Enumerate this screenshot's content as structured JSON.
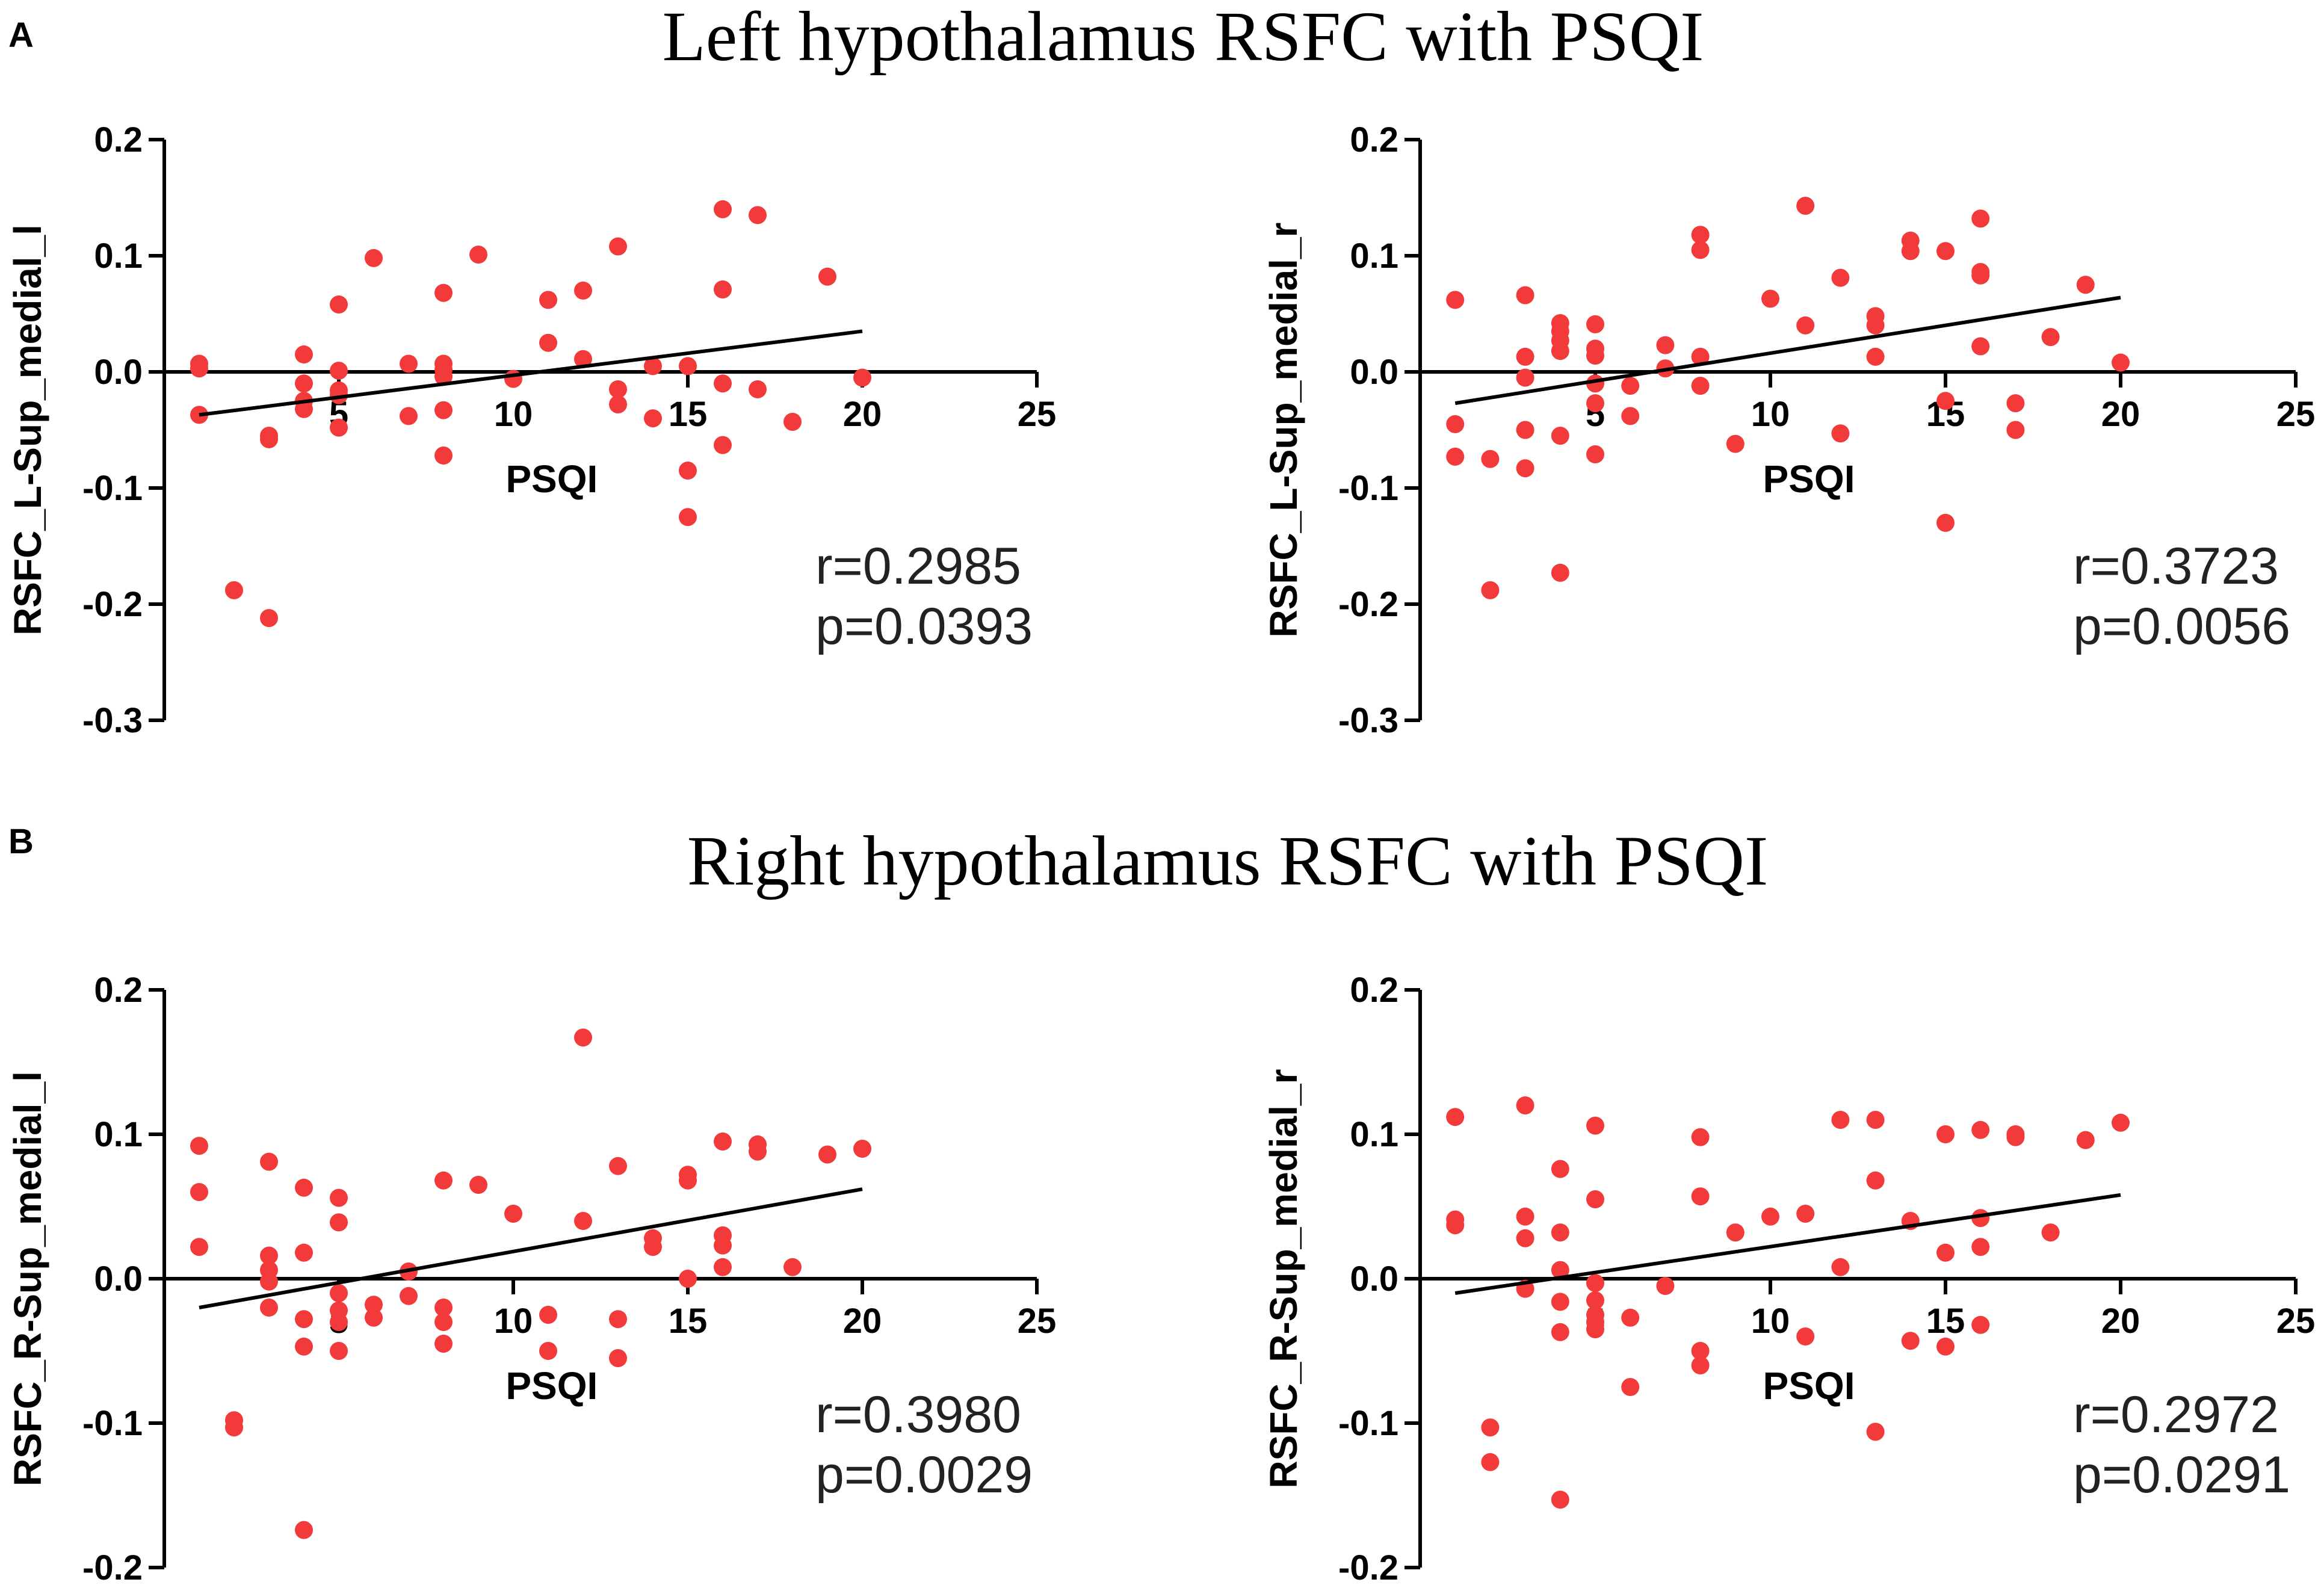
{
  "panel_letters": [
    "A",
    "B"
  ],
  "section_titles": [
    "Left hypothalamus RSFC with PSQI",
    "Right hypothalamus RSFC with PSQI"
  ],
  "colors": {
    "point": "#f23a3a",
    "line": "#000000",
    "axis": "#000000",
    "text": "#222222"
  },
  "chart_data": [
    {
      "type": "scatter",
      "section": 0,
      "xlabel": "PSQI",
      "ylabel": "RSFC_L-Sup_medial_l",
      "xlim": [
        0,
        25
      ],
      "ylim": [
        -0.3,
        0.2
      ],
      "xticks": [
        5,
        10,
        15,
        20,
        25
      ],
      "xtick_labels": [
        "5",
        "10",
        "15",
        "20",
        "25"
      ],
      "yticks": [
        0.2,
        0.1,
        0.0,
        -0.1,
        -0.2,
        -0.3
      ],
      "ytick_labels": [
        "0.2",
        "0.1",
        "0.0",
        "-0.1",
        "-0.2",
        "-0.3"
      ],
      "r_text": "r=0.2985",
      "p_text": "p=0.0393",
      "fit": {
        "x": [
          1,
          20
        ],
        "y": [
          -0.037,
          0.035
        ]
      },
      "points": [
        [
          1,
          0.007
        ],
        [
          1,
          0.003
        ],
        [
          1,
          -0.037
        ],
        [
          2,
          -0.188
        ],
        [
          3,
          -0.055
        ],
        [
          3,
          -0.058
        ],
        [
          3,
          -0.212
        ],
        [
          4,
          0.015
        ],
        [
          4,
          -0.01
        ],
        [
          4,
          -0.025
        ],
        [
          4,
          -0.032
        ],
        [
          5,
          0.058
        ],
        [
          5,
          0.001
        ],
        [
          5,
          -0.016
        ],
        [
          5,
          -0.02
        ],
        [
          5,
          -0.048
        ],
        [
          6,
          0.098
        ],
        [
          7,
          0.007
        ],
        [
          7,
          -0.038
        ],
        [
          8,
          0.068
        ],
        [
          8,
          0.007
        ],
        [
          8,
          0.002
        ],
        [
          8,
          -0.004
        ],
        [
          8,
          -0.033
        ],
        [
          8,
          -0.072
        ],
        [
          9,
          0.101
        ],
        [
          10,
          -0.006
        ],
        [
          11,
          0.062
        ],
        [
          11,
          0.025
        ],
        [
          12,
          0.07
        ],
        [
          12,
          0.011
        ],
        [
          13,
          0.108
        ],
        [
          13,
          -0.015
        ],
        [
          13,
          -0.028
        ],
        [
          14,
          0.005
        ],
        [
          14,
          -0.04
        ],
        [
          15,
          0.005
        ],
        [
          15,
          -0.085
        ],
        [
          15,
          -0.125
        ],
        [
          16,
          0.14
        ],
        [
          16,
          0.071
        ],
        [
          16,
          -0.01
        ],
        [
          16,
          -0.063
        ],
        [
          17,
          0.135
        ],
        [
          17,
          -0.015
        ],
        [
          18,
          -0.043
        ],
        [
          19,
          0.082
        ],
        [
          20,
          -0.005
        ]
      ]
    },
    {
      "type": "scatter",
      "section": 0,
      "xlabel": "PSQI",
      "ylabel": "RSFC_L-Sup_medial_r",
      "xlim": [
        0,
        25
      ],
      "ylim": [
        -0.3,
        0.2
      ],
      "xticks": [
        5,
        10,
        15,
        20,
        25
      ],
      "xtick_labels": [
        "5",
        "10",
        "15",
        "20",
        "25"
      ],
      "yticks": [
        0.2,
        0.1,
        0.0,
        -0.1,
        -0.2,
        -0.3
      ],
      "ytick_labels": [
        "0.2",
        "0.1",
        "0.0",
        "-0.1",
        "-0.2",
        "-0.3"
      ],
      "r_text": "r=0.3723",
      "p_text": "p=0.0056",
      "fit": {
        "x": [
          1,
          20
        ],
        "y": [
          -0.027,
          0.064
        ]
      },
      "points": [
        [
          1,
          0.062
        ],
        [
          1,
          -0.045
        ],
        [
          1,
          -0.073
        ],
        [
          2,
          -0.075
        ],
        [
          2,
          -0.188
        ],
        [
          3,
          0.066
        ],
        [
          3,
          0.013
        ],
        [
          3,
          -0.005
        ],
        [
          3,
          -0.05
        ],
        [
          3,
          -0.083
        ],
        [
          4,
          0.042
        ],
        [
          4,
          0.035
        ],
        [
          4,
          0.027
        ],
        [
          4,
          0.018
        ],
        [
          4,
          -0.055
        ],
        [
          4,
          -0.173
        ],
        [
          5,
          0.041
        ],
        [
          5,
          0.02
        ],
        [
          5,
          0.014
        ],
        [
          5,
          -0.01
        ],
        [
          5,
          -0.027
        ],
        [
          5,
          -0.071
        ],
        [
          6,
          -0.012
        ],
        [
          6,
          -0.038
        ],
        [
          7,
          0.023
        ],
        [
          7,
          0.003
        ],
        [
          8,
          0.118
        ],
        [
          8,
          0.105
        ],
        [
          8,
          0.013
        ],
        [
          8,
          -0.012
        ],
        [
          9,
          -0.062
        ],
        [
          10,
          0.063
        ],
        [
          11,
          0.143
        ],
        [
          11,
          0.04
        ],
        [
          12,
          0.081
        ],
        [
          12,
          -0.053
        ],
        [
          13,
          0.048
        ],
        [
          13,
          0.04
        ],
        [
          13,
          0.013
        ],
        [
          14,
          0.113
        ],
        [
          14,
          0.104
        ],
        [
          15,
          0.104
        ],
        [
          15,
          -0.025
        ],
        [
          15,
          -0.13
        ],
        [
          16,
          0.132
        ],
        [
          16,
          0.086
        ],
        [
          16,
          0.083
        ],
        [
          16,
          0.022
        ],
        [
          17,
          -0.027
        ],
        [
          17,
          -0.05
        ],
        [
          18,
          0.03
        ],
        [
          19,
          0.075
        ],
        [
          20,
          0.008
        ]
      ]
    },
    {
      "type": "scatter",
      "section": 1,
      "xlabel": "PSQI",
      "ylabel": "RSFC_R-Sup_medial_l",
      "xlim": [
        0,
        25
      ],
      "ylim": [
        -0.2,
        0.2
      ],
      "xticks": [
        5,
        10,
        15,
        20,
        25
      ],
      "xtick_labels": [
        "5",
        "10",
        "15",
        "20",
        "25"
      ],
      "yticks": [
        0.2,
        0.1,
        0.0,
        -0.1,
        -0.2
      ],
      "ytick_labels": [
        "0.2",
        "0.1",
        "0.0",
        "-0.1",
        "-0.2"
      ],
      "r_text": "r=0.3980",
      "p_text": "p=0.0029",
      "fit": {
        "x": [
          1,
          20
        ],
        "y": [
          -0.02,
          0.062
        ]
      },
      "points": [
        [
          1,
          0.092
        ],
        [
          1,
          0.06
        ],
        [
          1,
          0.022
        ],
        [
          2,
          -0.098
        ],
        [
          2,
          -0.103
        ],
        [
          3,
          0.081
        ],
        [
          3,
          0.016
        ],
        [
          3,
          0.006
        ],
        [
          3,
          -0.002
        ],
        [
          3,
          -0.02
        ],
        [
          4,
          0.063
        ],
        [
          4,
          0.018
        ],
        [
          4,
          -0.028
        ],
        [
          4,
          -0.047
        ],
        [
          4,
          -0.174
        ],
        [
          5,
          0.056
        ],
        [
          5,
          0.039
        ],
        [
          5,
          -0.01
        ],
        [
          5,
          -0.022
        ],
        [
          5,
          -0.03
        ],
        [
          5,
          -0.05
        ],
        [
          6,
          -0.018
        ],
        [
          6,
          -0.027
        ],
        [
          7,
          0.005
        ],
        [
          7,
          -0.012
        ],
        [
          8,
          0.068
        ],
        [
          8,
          -0.02
        ],
        [
          8,
          -0.03
        ],
        [
          8,
          -0.045
        ],
        [
          9,
          0.065
        ],
        [
          10,
          0.045
        ],
        [
          11,
          -0.025
        ],
        [
          11,
          -0.05
        ],
        [
          12,
          0.167
        ],
        [
          12,
          0.04
        ],
        [
          13,
          0.078
        ],
        [
          13,
          -0.028
        ],
        [
          13,
          -0.055
        ],
        [
          14,
          0.028
        ],
        [
          14,
          0.022
        ],
        [
          15,
          0.072
        ],
        [
          15,
          0.068
        ],
        [
          15,
          0.0
        ],
        [
          16,
          0.095
        ],
        [
          16,
          0.03
        ],
        [
          16,
          0.023
        ],
        [
          16,
          0.008
        ],
        [
          17,
          0.093
        ],
        [
          17,
          0.088
        ],
        [
          18,
          0.008
        ],
        [
          19,
          0.086
        ],
        [
          20,
          0.09
        ]
      ]
    },
    {
      "type": "scatter",
      "section": 1,
      "xlabel": "PSQI",
      "ylabel": "RSFC_R-Sup_medial_r",
      "xlim": [
        0,
        25
      ],
      "ylim": [
        -0.2,
        0.2
      ],
      "xticks": [
        5,
        10,
        15,
        20,
        25
      ],
      "xtick_labels": [
        "5",
        "10",
        "15",
        "20",
        "25"
      ],
      "yticks": [
        0.2,
        0.1,
        0.0,
        -0.1,
        -0.2
      ],
      "ytick_labels": [
        "0.2",
        "0.1",
        "0.0",
        "-0.1",
        "-0.2"
      ],
      "r_text": "r=0.2972",
      "p_text": "p=0.0291",
      "fit": {
        "x": [
          1,
          20
        ],
        "y": [
          -0.01,
          0.058
        ]
      },
      "points": [
        [
          1,
          0.112
        ],
        [
          1,
          0.041
        ],
        [
          1,
          0.037
        ],
        [
          2,
          -0.103
        ],
        [
          2,
          -0.127
        ],
        [
          3,
          0.12
        ],
        [
          3,
          0.043
        ],
        [
          3,
          0.028
        ],
        [
          3,
          -0.007
        ],
        [
          4,
          0.076
        ],
        [
          4,
          0.032
        ],
        [
          4,
          0.006
        ],
        [
          4,
          -0.016
        ],
        [
          4,
          -0.037
        ],
        [
          4,
          -0.153
        ],
        [
          5,
          0.106
        ],
        [
          5,
          0.055
        ],
        [
          5,
          -0.003
        ],
        [
          5,
          -0.015
        ],
        [
          5,
          -0.025
        ],
        [
          5,
          -0.03
        ],
        [
          5,
          -0.035
        ],
        [
          6,
          -0.027
        ],
        [
          6,
          -0.075
        ],
        [
          7,
          -0.005
        ],
        [
          8,
          0.098
        ],
        [
          8,
          0.057
        ],
        [
          8,
          -0.05
        ],
        [
          8,
          -0.06
        ],
        [
          9,
          0.032
        ],
        [
          10,
          0.043
        ],
        [
          11,
          0.045
        ],
        [
          11,
          -0.04
        ],
        [
          12,
          0.11
        ],
        [
          12,
          0.008
        ],
        [
          13,
          0.11
        ],
        [
          13,
          0.068
        ],
        [
          13,
          -0.106
        ],
        [
          14,
          0.04
        ],
        [
          14,
          -0.043
        ],
        [
          15,
          0.1
        ],
        [
          15,
          0.018
        ],
        [
          15,
          -0.047
        ],
        [
          16,
          0.103
        ],
        [
          16,
          0.042
        ],
        [
          16,
          0.022
        ],
        [
          16,
          -0.032
        ],
        [
          17,
          0.1
        ],
        [
          17,
          0.098
        ],
        [
          18,
          0.032
        ],
        [
          19,
          0.096
        ],
        [
          20,
          0.108
        ]
      ]
    }
  ]
}
